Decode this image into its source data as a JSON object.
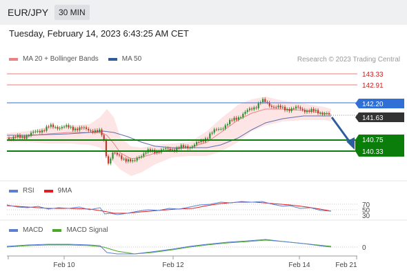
{
  "header": {
    "symbol": "EUR/JPY",
    "timeframe": "30 MIN"
  },
  "datetime": "Tuesday, February 14, 2023 6:43:25 AM CET",
  "legend_main": [
    {
      "label": "MA 20 + Bollinger Bands",
      "color": "#f08080"
    },
    {
      "label": "MA 50",
      "color": "#2e5d9e"
    }
  ],
  "copyright": "Research © 2023 Trading Central",
  "levels": {
    "resistances": [
      "143.33",
      "142.91"
    ],
    "pivot": "142.20",
    "current": "141.63",
    "supports": [
      "140.75",
      "140.33"
    ]
  },
  "rsi_panel": {
    "legend": [
      {
        "label": "RSI",
        "color": "#5a7fd6"
      },
      {
        "label": "9MA",
        "color": "#e02020"
      }
    ],
    "ticks": [
      "70",
      "50",
      "30"
    ]
  },
  "macd_panel": {
    "legend": [
      {
        "label": "MACD",
        "color": "#5a7fd6"
      },
      {
        "label": "MACD Signal",
        "color": "#4aa82a"
      }
    ],
    "ticks": [
      "0"
    ]
  },
  "x_axis": [
    "Feb 10",
    "Feb 12",
    "Feb 14",
    "Feb 21"
  ],
  "colors": {
    "up": "#2e8b2e",
    "down": "#c0392b",
    "pivot": "#2f6fd6",
    "support": "#0a7d0a",
    "resistance": "#e05050",
    "arrow": "#2e5d9e"
  }
}
